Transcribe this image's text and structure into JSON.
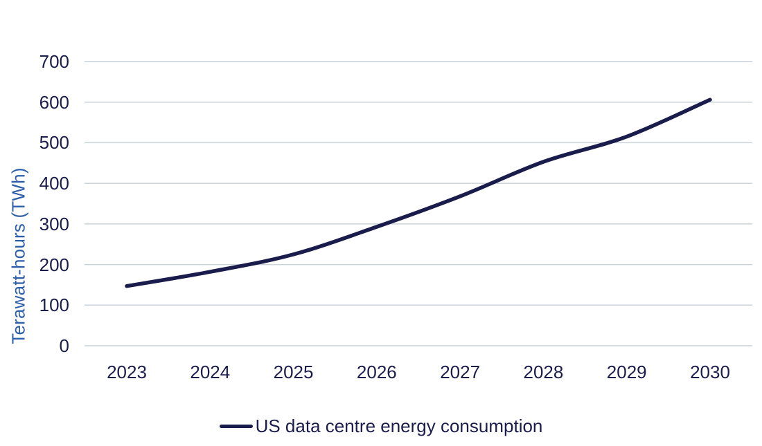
{
  "chart_data": {
    "type": "line",
    "title": "",
    "xlabel": "",
    "ylabel": "Terawatt-hours (TWh)",
    "categories": [
      "2023",
      "2024",
      "2025",
      "2026",
      "2027",
      "2028",
      "2029",
      "2030"
    ],
    "series": [
      {
        "name": "US data centre energy consumption",
        "values": [
          147,
          182,
          225,
          293,
          368,
          453,
          515,
          606
        ]
      }
    ],
    "ylim": [
      0,
      700
    ],
    "yticks": [
      0,
      100,
      200,
      300,
      400,
      500,
      600,
      700
    ],
    "grid": "horizontal",
    "legend_position": "bottom",
    "colors": {
      "line": "#1a1c4c",
      "tick_label": "#1a1c4c",
      "axis_title": "#2d5fa8",
      "gridline": "#c9d2d9",
      "background": "#ffffff"
    }
  }
}
